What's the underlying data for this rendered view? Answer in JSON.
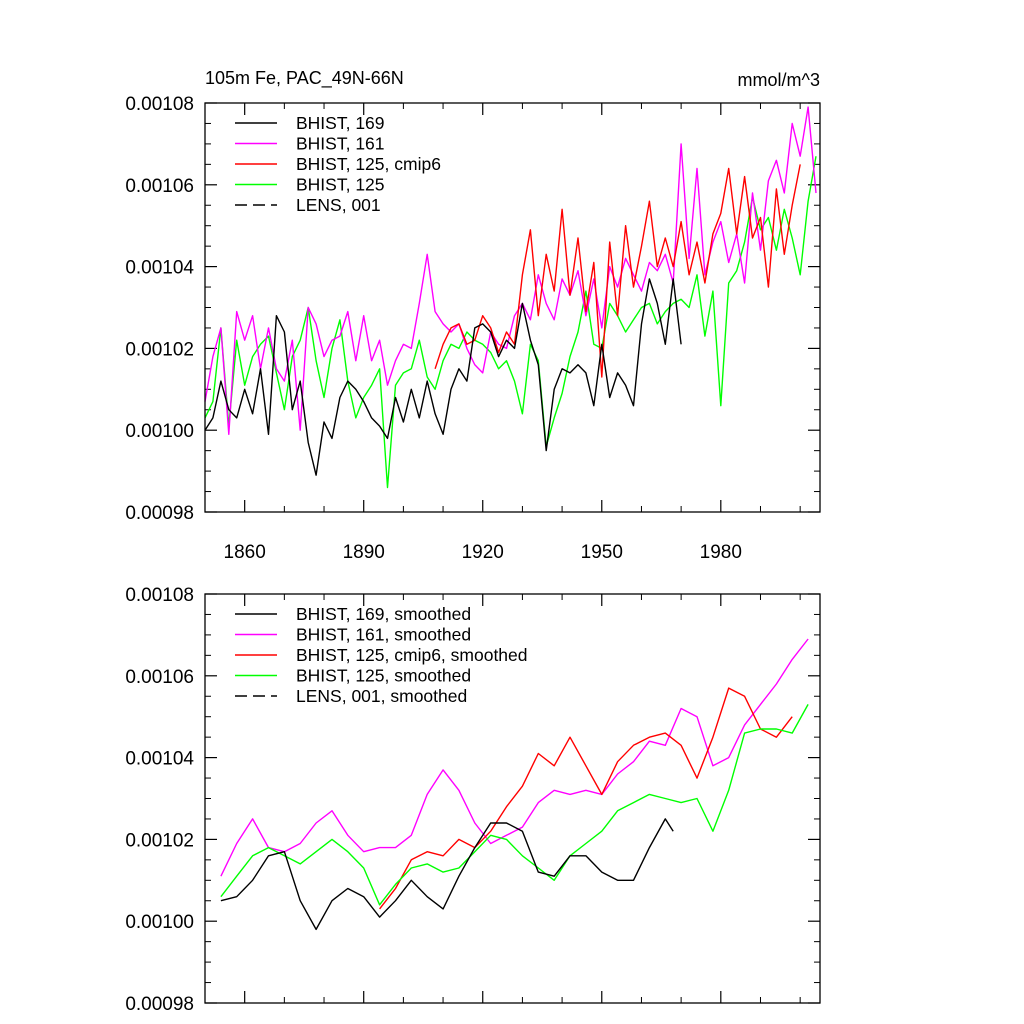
{
  "chart_data": [
    {
      "type": "line",
      "title": "105m Fe, PAC_49N-66N",
      "units": "mmol/m^3",
      "xlim": [
        1850,
        2005
      ],
      "ylim": [
        0.00098,
        0.00108
      ],
      "x_ticks": [
        1860,
        1890,
        1920,
        1950,
        1980
      ],
      "x_tick_labels": [
        "1860",
        "1890",
        "1920",
        "1950",
        "1980"
      ],
      "y_ticks": [
        0.00098,
        0.001,
        0.00102,
        0.00104,
        0.00106,
        0.00108
      ],
      "y_tick_labels": [
        "0.00098",
        "0.00100",
        "0.00102",
        "0.00104",
        "0.00106",
        "0.00108"
      ],
      "legend": [
        {
          "label": "BHIST, 169",
          "color": "#000000",
          "dash": "solid"
        },
        {
          "label": "BHIST, 161",
          "color": "#ff00ff",
          "dash": "solid"
        },
        {
          "label": "BHIST, 125, cmip6",
          "color": "#ff0000",
          "dash": "solid"
        },
        {
          "label": "BHIST, 125",
          "color": "#00ff00",
          "dash": "solid"
        },
        {
          "label": "LENS, 001",
          "color": "#000000",
          "dash": "dash"
        }
      ],
      "series": [
        {
          "name": "BHIST, 125",
          "color": "#00ff00",
          "x": [
            1850,
            1852,
            1854,
            1856,
            1858,
            1860,
            1862,
            1864,
            1866,
            1868,
            1870,
            1872,
            1874,
            1876,
            1878,
            1880,
            1882,
            1884,
            1886,
            1888,
            1890,
            1892,
            1894,
            1896,
            1898,
            1900,
            1902,
            1904,
            1906,
            1908,
            1910,
            1912,
            1914,
            1916,
            1918,
            1920,
            1922,
            1924,
            1926,
            1928,
            1930,
            1932,
            1934,
            1936,
            1938,
            1940,
            1942,
            1944,
            1946,
            1948,
            1950,
            1952,
            1954,
            1956,
            1958,
            1960,
            1962,
            1964,
            1966,
            1968,
            1970,
            1972,
            1974,
            1976,
            1978,
            1980,
            1982,
            1984,
            1986,
            1988,
            1990,
            1992,
            1994,
            1996,
            1998,
            2000,
            2002,
            2004
          ],
          "y": [
            0.001003,
            0.001007,
            0.001025,
            0.001001,
            0.001022,
            0.001011,
            0.001018,
            0.001021,
            0.001023,
            0.001014,
            0.001005,
            0.001018,
            0.001022,
            0.00103,
            0.001017,
            0.001008,
            0.00102,
            0.001027,
            0.001012,
            0.001003,
            0.001008,
            0.001011,
            0.001015,
            0.000986,
            0.001011,
            0.001014,
            0.001015,
            0.001022,
            0.001013,
            0.00101,
            0.001017,
            0.001021,
            0.00102,
            0.001024,
            0.001022,
            0.001021,
            0.001019,
            0.001015,
            0.001017,
            0.001012,
            0.001004,
            0.001021,
            0.001017,
            0.000996,
            0.001003,
            0.001009,
            0.001018,
            0.001024,
            0.001034,
            0.001021,
            0.00102,
            0.001031,
            0.001028,
            0.001024,
            0.001027,
            0.00103,
            0.001031,
            0.001026,
            0.001029,
            0.001031,
            0.001032,
            0.00103,
            0.001038,
            0.001023,
            0.001034,
            0.001006,
            0.001036,
            0.001039,
            0.001046,
            0.001057,
            0.001049,
            0.001052,
            0.001044,
            0.001054,
            0.001047,
            0.001038,
            0.001056,
            0.001067
          ]
        },
        {
          "name": "BHIST, 161",
          "color": "#ff00ff",
          "x": [
            1850,
            1852,
            1854,
            1856,
            1858,
            1860,
            1862,
            1864,
            1866,
            1868,
            1870,
            1872,
            1874,
            1876,
            1878,
            1880,
            1882,
            1884,
            1886,
            1888,
            1890,
            1892,
            1894,
            1896,
            1898,
            1900,
            1902,
            1904,
            1906,
            1908,
            1910,
            1912,
            1914,
            1916,
            1918,
            1920,
            1922,
            1924,
            1926,
            1928,
            1930,
            1932,
            1934,
            1936,
            1938,
            1940,
            1942,
            1944,
            1946,
            1948,
            1950,
            1952,
            1954,
            1956,
            1958,
            1960,
            1962,
            1964,
            1966,
            1968,
            1970,
            1972,
            1974,
            1976,
            1978,
            1980,
            1982,
            1984,
            1986,
            1988,
            1990,
            1992,
            1994,
            1996,
            1998,
            2000,
            2002,
            2004
          ],
          "y": [
            0.001007,
            0.001018,
            0.001025,
            0.000999,
            0.001029,
            0.001022,
            0.001028,
            0.001015,
            0.001025,
            0.001015,
            0.001012,
            0.001022,
            0.001,
            0.00103,
            0.001026,
            0.001018,
            0.001022,
            0.001023,
            0.001029,
            0.001017,
            0.001028,
            0.001017,
            0.001022,
            0.001011,
            0.001017,
            0.001021,
            0.00102,
            0.001031,
            0.001043,
            0.001029,
            0.001026,
            0.001024,
            0.001026,
            0.00102,
            0.001016,
            0.001014,
            0.001024,
            0.001021,
            0.00102,
            0.001028,
            0.001031,
            0.001027,
            0.001038,
            0.001031,
            0.001027,
            0.001037,
            0.001033,
            0.001039,
            0.001028,
            0.001037,
            0.001025,
            0.00104,
            0.001035,
            0.001042,
            0.001038,
            0.001034,
            0.001041,
            0.001039,
            0.001043,
            0.001036,
            0.00107,
            0.001042,
            0.001064,
            0.001038,
            0.001046,
            0.001051,
            0.001041,
            0.001048,
            0.001036,
            0.001058,
            0.001044,
            0.001061,
            0.001066,
            0.001058,
            0.001075,
            0.001067,
            0.001079,
            0.001058
          ]
        },
        {
          "name": "BHIST, 125, cmip6",
          "color": "#ff0000",
          "x": [
            1908,
            1910,
            1912,
            1914,
            1916,
            1918,
            1920,
            1922,
            1924,
            1926,
            1928,
            1930,
            1932,
            1934,
            1936,
            1938,
            1940,
            1942,
            1944,
            1946,
            1948,
            1950,
            1952,
            1954,
            1956,
            1958,
            1960,
            1962,
            1964,
            1966,
            1968,
            1970,
            1972,
            1974,
            1976,
            1978,
            1980,
            1982,
            1984,
            1986,
            1988,
            1990,
            1992,
            1994,
            1996,
            1998,
            2000
          ],
          "y": [
            0.001015,
            0.001021,
            0.001025,
            0.001026,
            0.001021,
            0.001022,
            0.001028,
            0.001025,
            0.001019,
            0.001024,
            0.001021,
            0.001038,
            0.001049,
            0.001028,
            0.001043,
            0.001034,
            0.001054,
            0.001033,
            0.001047,
            0.001029,
            0.001041,
            0.001013,
            0.001046,
            0.001028,
            0.00105,
            0.001035,
            0.001045,
            0.001056,
            0.00104,
            0.001047,
            0.00104,
            0.001051,
            0.001038,
            0.001046,
            0.001036,
            0.001048,
            0.001053,
            0.001064,
            0.001048,
            0.001062,
            0.001047,
            0.001052,
            0.001035,
            0.001059,
            0.001043,
            0.001055,
            0.001065
          ]
        },
        {
          "name": "BHIST, 169",
          "color": "#000000",
          "x": [
            1850,
            1852,
            1854,
            1856,
            1858,
            1860,
            1862,
            1864,
            1866,
            1868,
            1870,
            1872,
            1874,
            1876,
            1878,
            1880,
            1882,
            1884,
            1886,
            1888,
            1890,
            1892,
            1894,
            1896,
            1898,
            1900,
            1902,
            1904,
            1906,
            1908,
            1910,
            1912,
            1914,
            1916,
            1918,
            1920,
            1922,
            1924,
            1926,
            1928,
            1930,
            1932,
            1934,
            1936,
            1938,
            1940,
            1942,
            1944,
            1946,
            1948,
            1950,
            1952,
            1954,
            1956,
            1958,
            1960,
            1962,
            1964,
            1966,
            1968,
            1970
          ],
          "y": [
            0.001,
            0.001003,
            0.001012,
            0.001005,
            0.001003,
            0.00101,
            0.001004,
            0.001015,
            0.000999,
            0.001028,
            0.001024,
            0.001005,
            0.001012,
            0.000997,
            0.000989,
            0.001002,
            0.000998,
            0.001008,
            0.001012,
            0.00101,
            0.001007,
            0.001003,
            0.001001,
            0.000998,
            0.001008,
            0.001002,
            0.00101,
            0.001003,
            0.001012,
            0.001004,
            0.000999,
            0.00101,
            0.001015,
            0.001012,
            0.001025,
            0.001026,
            0.001024,
            0.001018,
            0.001022,
            0.00102,
            0.001031,
            0.001022,
            0.001016,
            0.000995,
            0.00101,
            0.001015,
            0.001014,
            0.001016,
            0.001014,
            0.001006,
            0.001021,
            0.001008,
            0.001014,
            0.001011,
            0.001006,
            0.001026,
            0.001037,
            0.001031,
            0.001021,
            0.001037,
            0.001021
          ]
        }
      ]
    },
    {
      "type": "line",
      "title": "",
      "xlim": [
        1850,
        2005
      ],
      "ylim": [
        0.00098,
        0.00108
      ],
      "x_ticks": [
        1860,
        1890,
        1920,
        1950,
        1980
      ],
      "y_ticks": [
        0.00098,
        0.001,
        0.00102,
        0.00104,
        0.00106,
        0.00108
      ],
      "y_tick_labels": [
        "0.00098",
        "0.00100",
        "0.00102",
        "0.00104",
        "0.00106",
        "0.00108"
      ],
      "legend": [
        {
          "label": "BHIST, 169, smoothed",
          "color": "#000000",
          "dash": "solid"
        },
        {
          "label": "BHIST, 161, smoothed",
          "color": "#ff00ff",
          "dash": "solid"
        },
        {
          "label": "BHIST, 125, cmip6, smoothed",
          "color": "#ff0000",
          "dash": "solid"
        },
        {
          "label": "BHIST, 125, smoothed",
          "color": "#00ff00",
          "dash": "solid"
        },
        {
          "label": "LENS, 001, smoothed",
          "color": "#000000",
          "dash": "dash"
        }
      ],
      "series": [
        {
          "name": "BHIST, 161, smoothed",
          "color": "#ff00ff",
          "x": [
            1854,
            1858,
            1862,
            1866,
            1870,
            1874,
            1878,
            1882,
            1886,
            1890,
            1894,
            1898,
            1902,
            1906,
            1910,
            1914,
            1918,
            1922,
            1926,
            1930,
            1934,
            1938,
            1942,
            1946,
            1950,
            1954,
            1958,
            1962,
            1966,
            1970,
            1974,
            1978,
            1982,
            1986,
            1990,
            1994,
            1998,
            2002
          ],
          "y": [
            0.001011,
            0.001019,
            0.001025,
            0.001018,
            0.001017,
            0.001019,
            0.001024,
            0.001027,
            0.001021,
            0.001017,
            0.001018,
            0.001018,
            0.001021,
            0.001031,
            0.001037,
            0.001032,
            0.001024,
            0.001019,
            0.001021,
            0.001023,
            0.001029,
            0.001032,
            0.001031,
            0.001032,
            0.001031,
            0.001036,
            0.001039,
            0.001044,
            0.001043,
            0.001052,
            0.00105,
            0.001038,
            0.00104,
            0.001048,
            0.001053,
            0.001058,
            0.001064,
            0.001069
          ]
        },
        {
          "name": "BHIST, 125, cmip6, smoothed",
          "color": "#ff0000",
          "x": [
            1894,
            1898,
            1902,
            1906,
            1910,
            1914,
            1918,
            1922,
            1926,
            1930,
            1934,
            1938,
            1942,
            1946,
            1950,
            1954,
            1958,
            1962,
            1966,
            1970,
            1974,
            1978,
            1982,
            1986,
            1990,
            1994,
            1998
          ],
          "y": [
            0.001003,
            0.001008,
            0.001015,
            0.001017,
            0.001016,
            0.00102,
            0.001018,
            0.001022,
            0.001028,
            0.001033,
            0.001041,
            0.001038,
            0.001045,
            0.001038,
            0.001031,
            0.001039,
            0.001043,
            0.001045,
            0.001046,
            0.001043,
            0.001035,
            0.001045,
            0.001057,
            0.001055,
            0.001047,
            0.001045,
            0.00105
          ]
        },
        {
          "name": "BHIST, 125, smoothed",
          "color": "#00ff00",
          "x": [
            1854,
            1858,
            1862,
            1866,
            1870,
            1874,
            1878,
            1882,
            1886,
            1890,
            1894,
            1898,
            1902,
            1906,
            1910,
            1914,
            1918,
            1922,
            1926,
            1930,
            1934,
            1938,
            1942,
            1946,
            1950,
            1954,
            1958,
            1962,
            1966,
            1970,
            1974,
            1978,
            1982,
            1986,
            1990,
            1994,
            1998,
            2002
          ],
          "y": [
            0.001006,
            0.001011,
            0.001016,
            0.001018,
            0.001016,
            0.001014,
            0.001017,
            0.00102,
            0.001017,
            0.001013,
            0.001004,
            0.001009,
            0.001013,
            0.001014,
            0.001012,
            0.001013,
            0.001017,
            0.001021,
            0.00102,
            0.001016,
            0.001013,
            0.00101,
            0.001016,
            0.001019,
            0.001022,
            0.001027,
            0.001029,
            0.001031,
            0.00103,
            0.001029,
            0.00103,
            0.001022,
            0.001032,
            0.001046,
            0.001047,
            0.001047,
            0.001046,
            0.001053
          ]
        },
        {
          "name": "BHIST, 169, smoothed",
          "color": "#000000",
          "x": [
            1854,
            1858,
            1862,
            1866,
            1870,
            1874,
            1878,
            1882,
            1886,
            1890,
            1894,
            1898,
            1902,
            1906,
            1910,
            1914,
            1918,
            1922,
            1926,
            1930,
            1934,
            1938,
            1942,
            1946,
            1950,
            1954,
            1958,
            1962,
            1966,
            1968
          ],
          "y": [
            0.001005,
            0.001006,
            0.00101,
            0.001016,
            0.001017,
            0.001005,
            0.000998,
            0.001005,
            0.001008,
            0.001006,
            0.001001,
            0.001005,
            0.00101,
            0.001006,
            0.001003,
            0.001011,
            0.001018,
            0.001024,
            0.001024,
            0.001022,
            0.001012,
            0.001011,
            0.001016,
            0.001016,
            0.001012,
            0.00101,
            0.00101,
            0.001018,
            0.001025,
            0.001022
          ]
        }
      ]
    }
  ]
}
